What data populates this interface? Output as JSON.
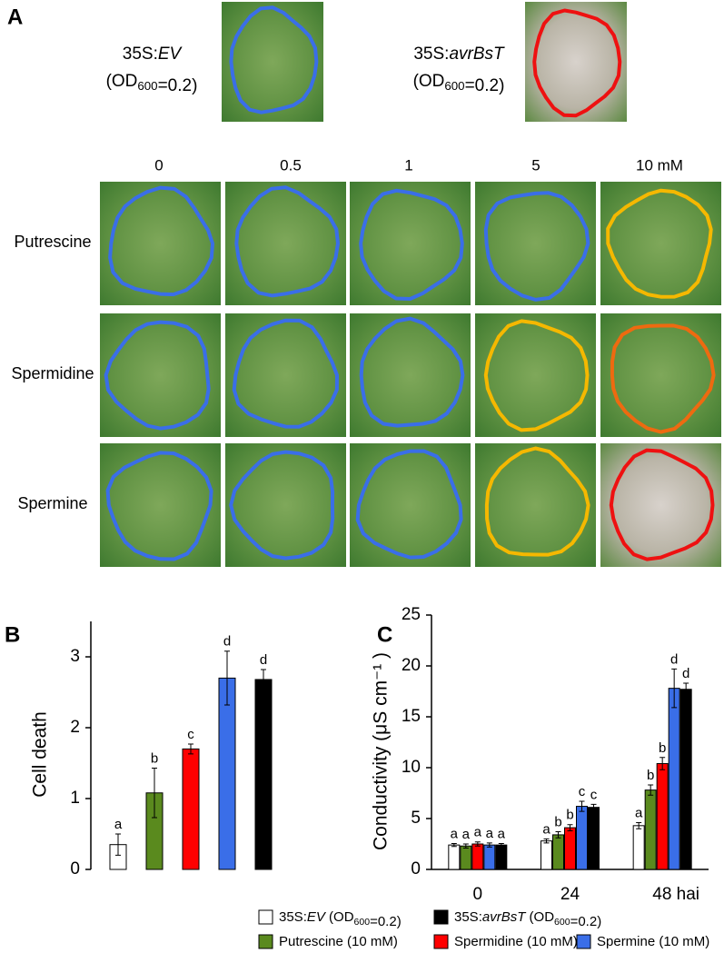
{
  "panel_a": {
    "label": "A",
    "controls": [
      {
        "line1": "35S:EV",
        "line2": "(OD600=0.2)"
      },
      {
        "line1": "35S:avrBsT",
        "line2": "(OD600=0.2)"
      }
    ],
    "concentrations": [
      "0",
      "0.5",
      "1",
      "5",
      "10 mM"
    ],
    "compounds": [
      "Putrescine",
      "Spermidine",
      "Spermine"
    ]
  },
  "chart_data": [
    {
      "type": "bar",
      "panel": "B",
      "ylabel": "Cell death",
      "categories": [
        null,
        null,
        null,
        null,
        null
      ],
      "values": [
        0.35,
        1.08,
        1.7,
        2.7,
        2.68
      ],
      "errors": [
        0.15,
        0.35,
        0.07,
        0.38,
        0.14
      ],
      "colors": [
        "#ffffff",
        "#5a8a1e",
        "#ff0000",
        "#3a6ee8",
        "#000000"
      ],
      "annotations": [
        "a",
        "b",
        "c",
        "d",
        "d"
      ],
      "ylim": [
        0,
        3.5
      ],
      "yticks": [
        0,
        1,
        2,
        3
      ]
    },
    {
      "type": "grouped-bar",
      "panel": "C",
      "ylabel": "Conductivity (μS cm⁻¹ )",
      "categories": [
        "0",
        "24",
        "48 hai"
      ],
      "series": [
        {
          "name": "35S:EV (OD600=0.2)",
          "color": "#ffffff",
          "values": [
            2.4,
            2.8,
            4.3
          ],
          "errors": [
            0.15,
            0.2,
            0.3
          ],
          "annotations": [
            "a",
            "a",
            "a"
          ]
        },
        {
          "name": "Putrescine (10 mM)",
          "color": "#5a8a1e",
          "values": [
            2.3,
            3.4,
            7.8
          ],
          "errors": [
            0.2,
            0.3,
            0.5
          ],
          "annotations": [
            "a",
            "b",
            "b"
          ]
        },
        {
          "name": "Spermidine (10 mM)",
          "color": "#ff0000",
          "values": [
            2.5,
            4.1,
            10.4
          ],
          "errors": [
            0.2,
            0.3,
            0.6
          ],
          "annotations": [
            "a",
            "b",
            "b"
          ]
        },
        {
          "name": "Spermine (10 mM)",
          "color": "#3a6ee8",
          "values": [
            2.4,
            6.2,
            17.8
          ],
          "errors": [
            0.2,
            0.5,
            1.9
          ],
          "annotations": [
            "a",
            "c",
            "d"
          ]
        },
        {
          "name": "35S:avrBsT (OD600=0.2)",
          "color": "#000000",
          "values": [
            2.4,
            6.1,
            17.7
          ],
          "errors": [
            0.15,
            0.3,
            0.6
          ],
          "annotations": [
            "a",
            "c",
            "d"
          ]
        }
      ],
      "ylim": [
        0,
        25
      ],
      "yticks": [
        0,
        5,
        10,
        15,
        20,
        25
      ]
    }
  ]
}
